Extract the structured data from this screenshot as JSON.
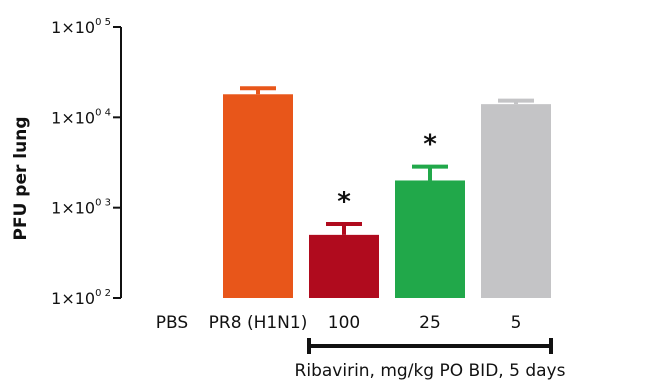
{
  "chart_data": {
    "type": "bar",
    "ylabel": "PFU per lung",
    "yscale": "log",
    "ylim": [
      100,
      100000
    ],
    "y_ticks": [
      {
        "value": 100000,
        "base": "1×10",
        "exp": "0 5"
      },
      {
        "value": 10000,
        "base": "1×10",
        "exp": "0 4"
      },
      {
        "value": 1000,
        "base": "1×10",
        "exp": "0 3"
      },
      {
        "value": 100,
        "base": "1×10",
        "exp": "0 2"
      }
    ],
    "categories": [
      "PBS",
      "PR8 (H1N1)",
      "100",
      "25",
      "5"
    ],
    "values": [
      null,
      18000,
      500,
      2000,
      14000
    ],
    "errors": [
      null,
      3000,
      160,
      850,
      1300
    ],
    "colors": [
      "#ffffff",
      "#e8561a",
      "#b00b1e",
      "#21a84a",
      "#c4c4c6"
    ],
    "significance": [
      "",
      "",
      "*",
      "*",
      ""
    ],
    "bracket_label": "Ribavirin, mg/kg PO BID, 5 days",
    "bracket_categories": [
      "100",
      "25",
      "5"
    ]
  }
}
